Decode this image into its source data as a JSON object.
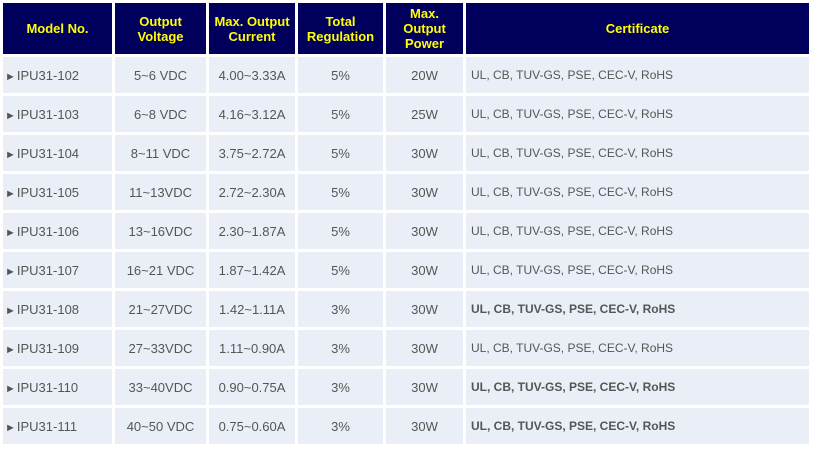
{
  "headers": {
    "model": "Model No.",
    "voltage": "Output Voltage",
    "current": "Max. Output Current",
    "regulation": "Total Regulation",
    "power": "Max. Output Power",
    "certificate": "Certificate"
  },
  "arrow_glyph": "►",
  "rows": [
    {
      "model": "IPU31-102",
      "voltage": "5~6 VDC",
      "current": "4.00~3.33A",
      "regulation": "5%",
      "power": "20W",
      "certificate": "UL, CB, TUV-GS, PSE, CEC-V, RoHS",
      "cert_bold": false
    },
    {
      "model": "IPU31-103",
      "voltage": "6~8 VDC",
      "current": "4.16~3.12A",
      "regulation": "5%",
      "power": "25W",
      "certificate": "UL, CB, TUV-GS, PSE, CEC-V, RoHS",
      "cert_bold": false
    },
    {
      "model": "IPU31-104",
      "voltage": "8~11 VDC",
      "current": "3.75~2.72A",
      "regulation": "5%",
      "power": "30W",
      "certificate": "UL, CB, TUV-GS, PSE, CEC-V, RoHS",
      "cert_bold": false
    },
    {
      "model": "IPU31-105",
      "voltage": "11~13VDC",
      "current": "2.72~2.30A",
      "regulation": "5%",
      "power": "30W",
      "certificate": "UL, CB, TUV-GS, PSE, CEC-V, RoHS",
      "cert_bold": false
    },
    {
      "model": "IPU31-106",
      "voltage": "13~16VDC",
      "current": "2.30~1.87A",
      "regulation": "5%",
      "power": "30W",
      "certificate": "UL, CB, TUV-GS, PSE, CEC-V, RoHS",
      "cert_bold": false
    },
    {
      "model": "IPU31-107",
      "voltage": "16~21 VDC",
      "current": "1.87~1.42A",
      "regulation": "5%",
      "power": "30W",
      "certificate": "UL, CB, TUV-GS, PSE, CEC-V, RoHS",
      "cert_bold": false
    },
    {
      "model": "IPU31-108",
      "voltage": "21~27VDC",
      "current": "1.42~1.11A",
      "regulation": "3%",
      "power": "30W",
      "certificate": "UL, CB, TUV-GS, PSE, CEC-V, RoHS",
      "cert_bold": true
    },
    {
      "model": "IPU31-109",
      "voltage": "27~33VDC",
      "current": "1.11~0.90A",
      "regulation": "3%",
      "power": "30W",
      "certificate": "UL, CB, TUV-GS, PSE, CEC-V, RoHS",
      "cert_bold": false
    },
    {
      "model": "IPU31-110",
      "voltage": "33~40VDC",
      "current": "0.90~0.75A",
      "regulation": "3%",
      "power": "30W",
      "certificate": "UL, CB, TUV-GS, PSE, CEC-V, RoHS",
      "cert_bold": true
    },
    {
      "model": "IPU31-111",
      "voltage": "40~50 VDC",
      "current": "0.75~0.60A",
      "regulation": "3%",
      "power": "30W",
      "certificate": "UL, CB, TUV-GS, PSE, CEC-V, RoHS",
      "cert_bold": true
    }
  ],
  "colors": {
    "header_bg": "#00005c",
    "header_text": "#ffff00",
    "cell_bg": "#eaeff7",
    "cell_text": "#555555"
  }
}
